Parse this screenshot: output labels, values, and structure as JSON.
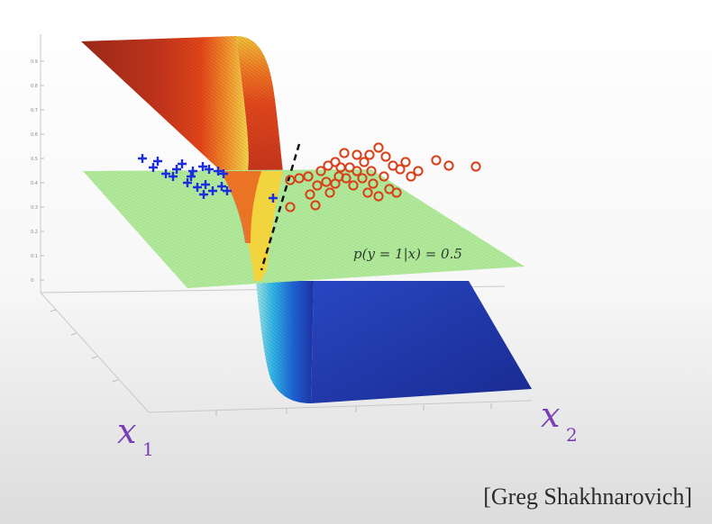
{
  "figure": {
    "equation_label": "p(y = 1|x) = 0.5",
    "credit": "[Greg Shakhnarovich]",
    "axes": {
      "x1": {
        "letter": "x",
        "sub": "1"
      },
      "x2": {
        "letter": "x",
        "sub": "2"
      }
    },
    "vertical_ticks": [
      "0.9",
      "0.8",
      "0.7",
      "0.6",
      "0.5",
      "0.4",
      "0.3",
      "0.2",
      "0.1",
      "0"
    ],
    "colors": {
      "plane": "#a6e38c",
      "surface_high": "#b8321c",
      "surface_low": "#1e34a8",
      "class_pos": "#1a2ee0",
      "class_neg": "#d8401a",
      "boundary": "#111111",
      "axis_annotation": "#7a3fb6"
    },
    "classes": [
      {
        "marker": "plus",
        "color": "#1a2ee0"
      },
      {
        "marker": "circle",
        "color": "#d8401a"
      }
    ]
  }
}
